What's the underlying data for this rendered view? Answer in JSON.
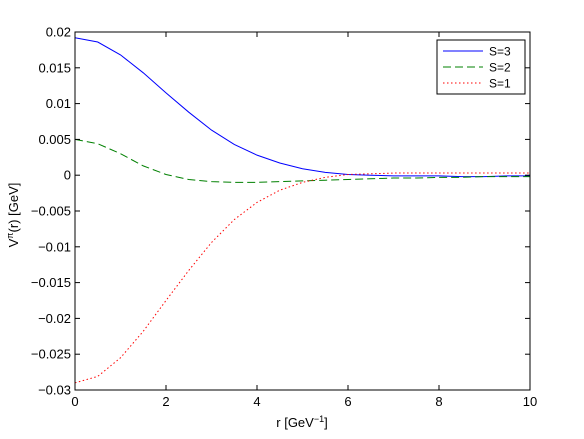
{
  "chart_data": {
    "type": "line",
    "title": "",
    "xlabel": {
      "base": "r [GeV",
      "sup": "−1",
      "tail": "]"
    },
    "ylabel": {
      "base": "V",
      "sup": "π",
      "tail": "(r) [GeV]"
    },
    "xlim": [
      0,
      10
    ],
    "ylim": [
      -0.03,
      0.02
    ],
    "grid": false,
    "legend_position": "top-right",
    "x_ticks": [
      "0",
      "2",
      "4",
      "6",
      "8",
      "10"
    ],
    "y_ticks": [
      "0.02",
      "0.015",
      "0.01",
      "0.005",
      "0",
      "−0.005",
      "−0.01",
      "−0.015",
      "−0.02",
      "−0.025",
      "−0.03"
    ],
    "x": [
      0,
      0.5,
      1,
      1.5,
      2,
      2.5,
      3,
      3.5,
      4,
      4.5,
      5,
      5.5,
      6,
      6.5,
      7,
      7.5,
      8,
      8.5,
      9,
      9.5,
      10
    ],
    "series": [
      {
        "name": "S=3",
        "color": "#0000ff",
        "style": "solid",
        "values": [
          0.0192,
          0.0186,
          0.0168,
          0.0143,
          0.0115,
          0.0088,
          0.0063,
          0.0043,
          0.0028,
          0.0017,
          0.0009,
          0.0004,
          0.0001,
          0.0,
          -0.0001,
          -0.0001,
          -0.0001,
          -0.0002,
          -0.0002,
          -0.0001,
          -0.0001
        ]
      },
      {
        "name": "S=2",
        "color": "#008000",
        "style": "dashed",
        "values": [
          0.005,
          0.0044,
          0.003,
          0.0013,
          0.0001,
          -0.0006,
          -0.0009,
          -0.001,
          -0.001,
          -0.0009,
          -0.0008,
          -0.0007,
          -0.0006,
          -0.0005,
          -0.0004,
          -0.0004,
          -0.0003,
          -0.0003,
          -0.0002,
          -0.0002,
          -0.0002
        ]
      },
      {
        "name": "S=1",
        "color": "#ff0000",
        "style": "dotted",
        "values": [
          -0.029,
          -0.0281,
          -0.0255,
          -0.0218,
          -0.0175,
          -0.0133,
          -0.0094,
          -0.0062,
          -0.0038,
          -0.0021,
          -0.001,
          -0.0003,
          0.0001,
          0.0002,
          0.0003,
          0.0003,
          0.0003,
          0.0003,
          0.0003,
          0.0003,
          0.0003
        ]
      }
    ]
  }
}
